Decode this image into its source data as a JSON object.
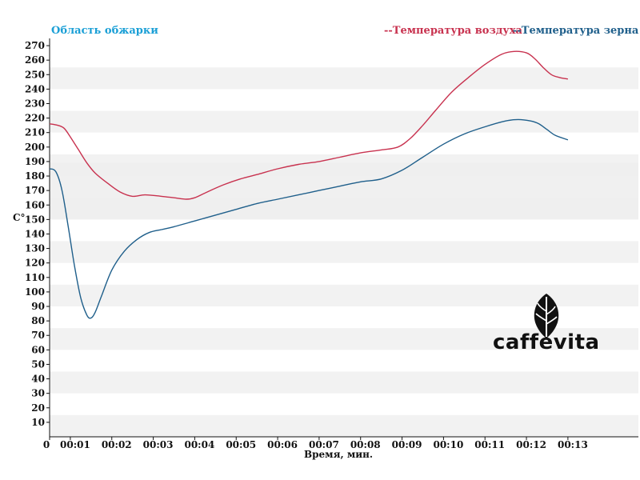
{
  "roast_area_label": "Область обжарки",
  "logo": {
    "text": "caffevita",
    "icon": "leaf-icon"
  },
  "colors": {
    "air": "#c8324f",
    "bean": "#1f5f8b",
    "zone": "#1a9fd6",
    "band": "#f2f2f2"
  },
  "chart_data": {
    "type": "line",
    "ylabel": "C°",
    "xlabel": "Время, мин.",
    "xlim": [
      0,
      14.2
    ],
    "ylim": [
      0,
      275
    ],
    "yticks": [
      10,
      20,
      30,
      40,
      50,
      60,
      70,
      80,
      90,
      100,
      110,
      120,
      130,
      140,
      150,
      160,
      170,
      180,
      190,
      200,
      210,
      220,
      230,
      240,
      250,
      260,
      270
    ],
    "xticks": [
      {
        "v": 0,
        "label": "0"
      },
      {
        "v": 0.5,
        "label": "00:01"
      },
      {
        "v": 1.5,
        "label": "00:02"
      },
      {
        "v": 2.5,
        "label": "00:03"
      },
      {
        "v": 3.5,
        "label": "00:04"
      },
      {
        "v": 4.5,
        "label": "00:05"
      },
      {
        "v": 5.5,
        "label": "00:06"
      },
      {
        "v": 6.5,
        "label": "00:07"
      },
      {
        "v": 7.5,
        "label": "00:08"
      },
      {
        "v": 8.5,
        "label": "00:09"
      },
      {
        "v": 9.5,
        "label": "00:10"
      },
      {
        "v": 10.5,
        "label": "00:11"
      },
      {
        "v": 11.5,
        "label": "00:12"
      },
      {
        "v": 12.5,
        "label": "00:13"
      }
    ],
    "roast_zone": [
      150,
      189
    ],
    "series": [
      {
        "name": "--Температура воздуха",
        "color": "#c8324f",
        "x": [
          0,
          0.2,
          0.35,
          0.5,
          0.7,
          0.9,
          1.1,
          1.4,
          1.7,
          2.0,
          2.3,
          2.7,
          3.0,
          3.3,
          3.5,
          3.8,
          4.2,
          4.6,
          5.0,
          5.5,
          6.0,
          6.5,
          7.0,
          7.5,
          8.0,
          8.4,
          8.7,
          9.0,
          9.3,
          9.7,
          10.1,
          10.5,
          10.9,
          11.2,
          11.5,
          11.7,
          11.9,
          12.1,
          12.3,
          12.5
        ],
        "y": [
          216,
          215,
          213,
          207,
          198,
          189,
          182,
          175,
          169,
          166,
          167,
          166,
          165,
          164,
          165,
          169,
          174,
          178,
          181,
          185,
          188,
          190,
          193,
          196,
          198,
          200,
          206,
          215,
          225,
          238,
          248,
          257,
          264,
          266,
          265,
          261,
          255,
          250,
          248,
          247
        ]
      },
      {
        "name": "--Температура зерна",
        "color": "#1f5f8b",
        "x": [
          0,
          0.15,
          0.3,
          0.45,
          0.6,
          0.75,
          0.9,
          1.0,
          1.1,
          1.25,
          1.5,
          1.8,
          2.1,
          2.4,
          2.7,
          3.0,
          3.5,
          4.0,
          4.5,
          5.0,
          5.5,
          6.0,
          6.5,
          7.0,
          7.5,
          8.0,
          8.5,
          9.0,
          9.5,
          10.0,
          10.5,
          11.0,
          11.3,
          11.6,
          11.8,
          12.0,
          12.2,
          12.5
        ],
        "y": [
          185,
          183,
          170,
          145,
          118,
          96,
          84,
          82,
          86,
          97,
          115,
          128,
          136,
          141,
          143,
          145,
          149,
          153,
          157,
          161,
          164,
          167,
          170,
          173,
          176,
          178,
          184,
          193,
          202,
          209,
          214,
          218,
          219,
          218,
          216,
          212,
          208,
          205
        ]
      }
    ]
  }
}
